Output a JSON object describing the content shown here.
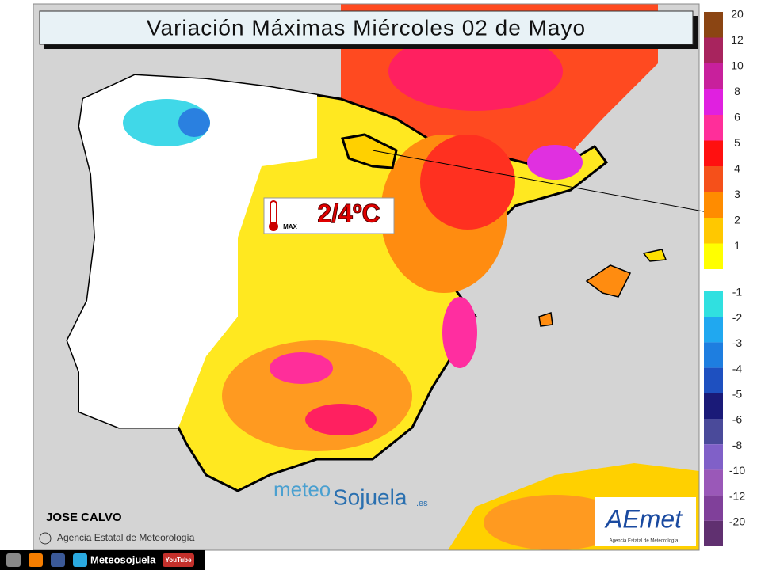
{
  "title": "Variación Máximas  Miércoles 02 de Mayo",
  "annotation": {
    "value": "2/4ºC",
    "icon_label": "MAX"
  },
  "author": "JOSE CALVO",
  "credit": "Agencia Estatal de Meteorología",
  "watermark": {
    "part1": "meteo",
    "part2": "Sojuela",
    "suffix": ".es"
  },
  "logo": {
    "name": "AEmet",
    "subtitle": "Agencia Estatal de Meteorología"
  },
  "footer": {
    "brand": "Meteosojuela",
    "youtube": "YouTube"
  },
  "legend": {
    "positive": [
      {
        "label": "20",
        "color": "#8b4513"
      },
      {
        "label": "12",
        "color": "#a8245e"
      },
      {
        "label": "10",
        "color": "#c8209c"
      },
      {
        "label": "8",
        "color": "#e020e0"
      },
      {
        "label": "6",
        "color": "#ff2e9a"
      },
      {
        "label": "5",
        "color": "#ff1010"
      },
      {
        "label": "4",
        "color": "#f5501a"
      },
      {
        "label": "3",
        "color": "#ff8c00"
      },
      {
        "label": "2",
        "color": "#ffc800"
      },
      {
        "label": "1",
        "color": "#ffff00"
      }
    ],
    "negative": [
      {
        "label": "-1",
        "color": "#30e0e0"
      },
      {
        "label": "-2",
        "color": "#20a8f0"
      },
      {
        "label": "-3",
        "color": "#1e7ee0"
      },
      {
        "label": "-4",
        "color": "#1e50c0"
      },
      {
        "label": "-5",
        "color": "#1a1a78"
      },
      {
        "label": "-6",
        "color": "#4a4a9a"
      },
      {
        "label": "-8",
        "color": "#8060c8"
      },
      {
        "label": "-10",
        "color": "#9a58b8"
      },
      {
        "label": "-12",
        "color": "#80409a"
      },
      {
        "label": "-20",
        "color": "#603070"
      }
    ]
  }
}
